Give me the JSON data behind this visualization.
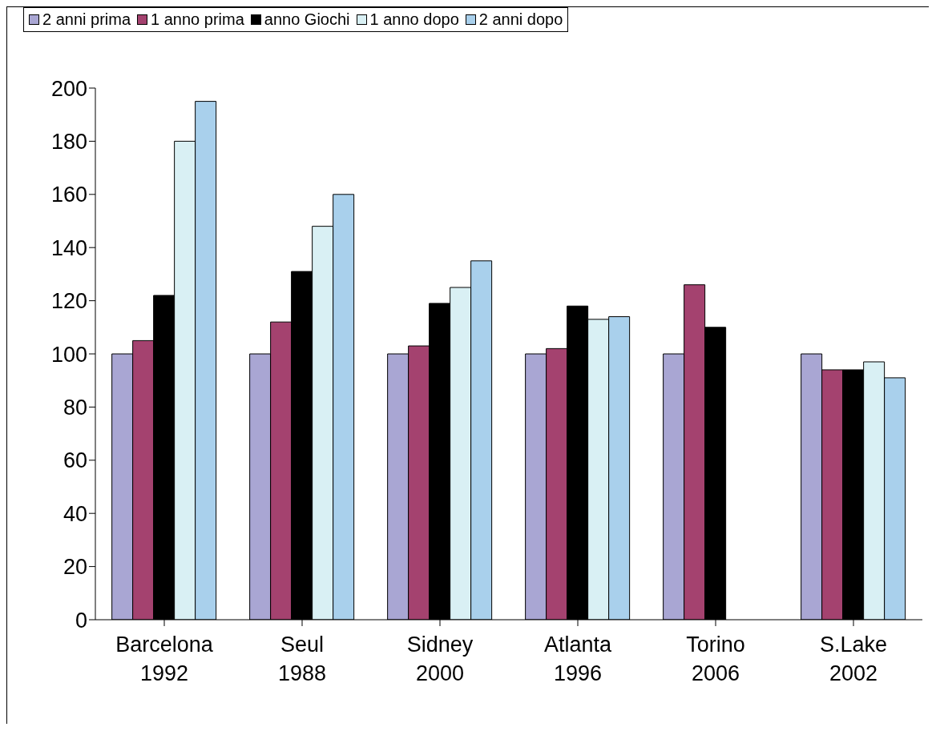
{
  "chart_data": {
    "type": "bar",
    "categories": [
      "Barcelona 1992",
      "Seul 1988",
      "Sidney 2000",
      "Atlanta 1996",
      "Torino 2006",
      "S.Lake 2002"
    ],
    "series": [
      {
        "name": "2 anni prima",
        "color": "#a9a6d3",
        "values": [
          100,
          100,
          100,
          100,
          100,
          100
        ]
      },
      {
        "name": "1 anno prima",
        "color": "#a4426f",
        "values": [
          105,
          112,
          103,
          102,
          126,
          94
        ]
      },
      {
        "name": "anno Giochi",
        "color": "#000000",
        "values": [
          122,
          131,
          119,
          118,
          110,
          94
        ]
      },
      {
        "name": "1 anno dopo",
        "color": "#d9f0f4",
        "values": [
          180,
          148,
          125,
          113,
          null,
          97
        ]
      },
      {
        "name": "2 anni dopo",
        "color": "#a9d0ec",
        "values": [
          195,
          160,
          135,
          114,
          null,
          91
        ]
      }
    ],
    "ylim": [
      0,
      200
    ],
    "yticks": [
      0,
      20,
      40,
      60,
      80,
      100,
      120,
      140,
      160,
      180,
      200
    ],
    "grid": false,
    "legend": "top"
  }
}
